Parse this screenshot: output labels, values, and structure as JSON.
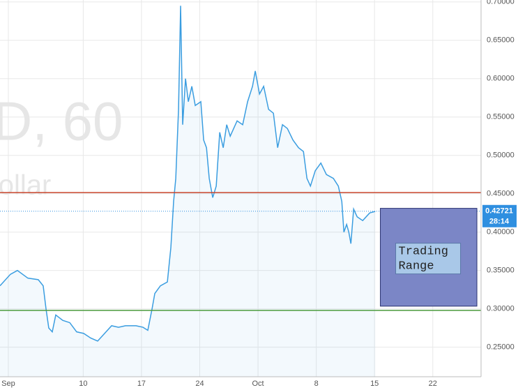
{
  "chart_data": {
    "type": "line",
    "watermark": [
      "D, 60",
      "S. Dollar"
    ],
    "x": [
      0,
      1.25,
      2.09,
      3.35,
      4.6,
      5.19,
      5.53,
      5.86,
      6.28,
      6.7,
      7.54,
      8.38,
      9.21,
      10.05,
      10.89,
      11.73,
      12.57,
      13.41,
      14.24,
      15.08,
      16.34,
      17.18,
      17.76,
      18.27,
      18.6,
      19.27,
      20.11,
      20.53,
      20.86,
      21.12,
      21.45,
      21.7,
      21.95,
      22.29,
      22.63,
      23.05,
      23.46,
      24.13,
      24.47,
      24.81,
      25.14,
      25.56,
      25.98,
      26.4,
      26.82,
      27.24,
      27.66,
      28.49,
      29.16,
      29.75,
      30.34,
      30.67,
      31.18,
      31.68,
      32.27,
      32.85,
      33.36,
      33.94,
      34.53,
      35.2,
      35.87,
      36.46,
      36.88,
      37.3,
      37.88,
      38.55,
      39.22,
      40.06,
      40.65,
      41.07,
      41.32,
      41.65,
      41.91,
      42.16,
      42.49,
      42.91,
      43.58,
      44.42,
      45.09
    ],
    "series": [
      {
        "color": "#3a9de0",
        "values": [
          0.33,
          0.345,
          0.35,
          0.34,
          0.338,
          0.33,
          0.3,
          0.275,
          0.27,
          0.292,
          0.285,
          0.282,
          0.27,
          0.268,
          0.262,
          0.258,
          0.268,
          0.278,
          0.276,
          0.278,
          0.278,
          0.276,
          0.272,
          0.3,
          0.32,
          0.33,
          0.335,
          0.38,
          0.44,
          0.47,
          0.56,
          0.695,
          0.54,
          0.6,
          0.57,
          0.59,
          0.565,
          0.57,
          0.52,
          0.51,
          0.47,
          0.445,
          0.46,
          0.53,
          0.51,
          0.54,
          0.525,
          0.545,
          0.54,
          0.57,
          0.59,
          0.61,
          0.58,
          0.59,
          0.56,
          0.555,
          0.51,
          0.54,
          0.535,
          0.52,
          0.51,
          0.505,
          0.47,
          0.46,
          0.48,
          0.49,
          0.475,
          0.47,
          0.46,
          0.44,
          0.4,
          0.41,
          0.4,
          0.385,
          0.43,
          0.42,
          0.415,
          0.425,
          0.427
        ]
      }
    ],
    "xlim": [
      0,
      57.8
    ],
    "xticks": [
      {
        "value": 1,
        "label": "Sep"
      },
      10,
      17,
      24,
      {
        "value": 31,
        "label": "Oct"
      },
      {
        "value": 38,
        "label": "8"
      },
      {
        "value": 45,
        "label": "15"
      },
      {
        "value": 52,
        "label": "22"
      }
    ],
    "ylim": [
      0.2115,
      0.7025
    ],
    "yticks": [
      {
        "value": 0.25,
        "label": "0.25000"
      },
      {
        "value": 0.3,
        "label": "0.30000"
      },
      {
        "value": 0.35,
        "label": "0.35000"
      },
      {
        "value": 0.4,
        "label": "0.40000"
      },
      {
        "value": 0.45,
        "label": "0.45000"
      },
      {
        "value": 0.5,
        "label": "0.50000"
      },
      {
        "value": 0.55,
        "label": "0.55000"
      },
      {
        "value": 0.6,
        "label": "0.60000"
      },
      {
        "value": 0.65,
        "label": "0.65000"
      },
      {
        "value": 0.7,
        "label": "0.70000"
      }
    ],
    "grid": true,
    "hlines": [
      {
        "value": 0.4515,
        "color": "#c8452c"
      },
      {
        "value": 0.298,
        "color": "#4a9a3c"
      }
    ],
    "last_price": {
      "value": 0.42721,
      "countdown": "28:14",
      "color": "#2f8fe0"
    },
    "rectangle": {
      "x": [
        45.7,
        57.3
      ],
      "y": [
        0.3035,
        0.431
      ],
      "label": "Trading Range",
      "color": "#7b86c6"
    }
  }
}
